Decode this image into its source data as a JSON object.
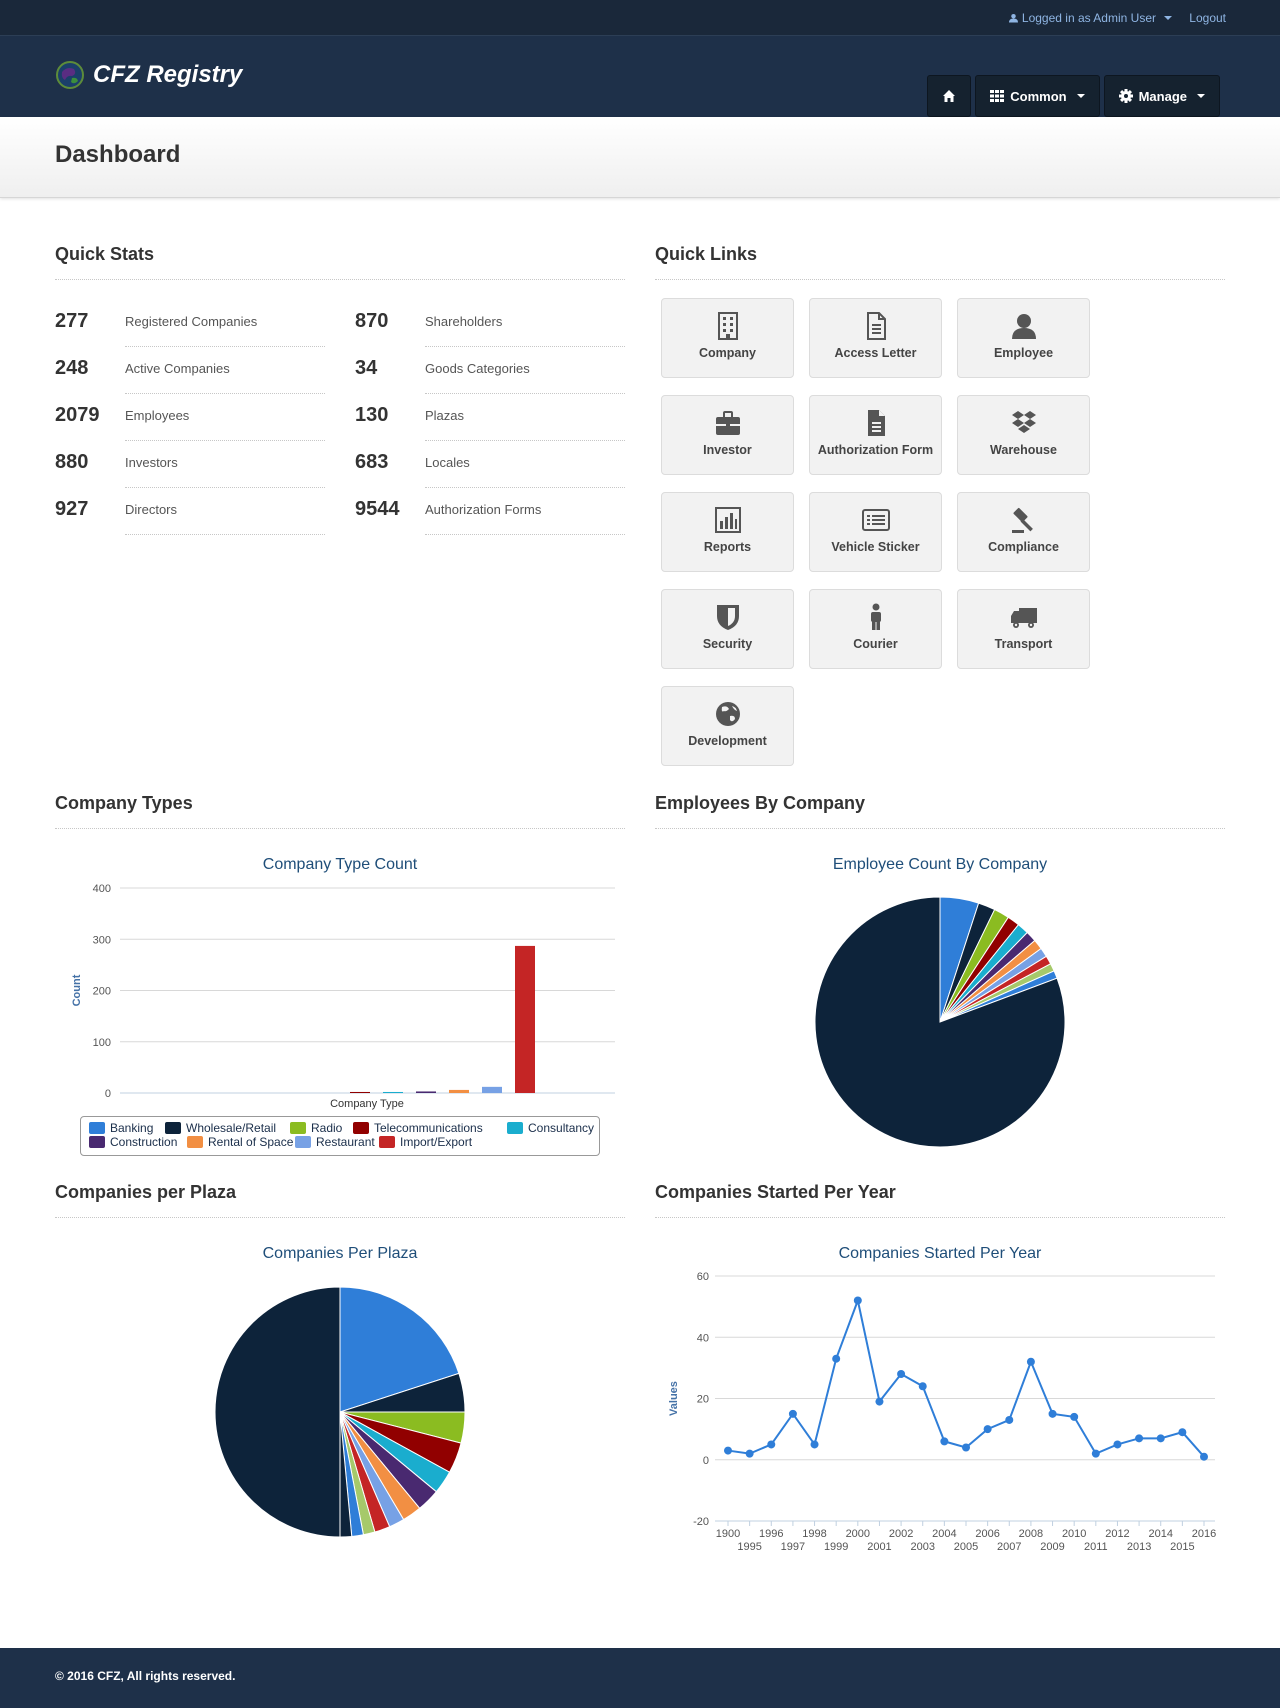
{
  "topbar": {
    "user": "Logged in as Admin User",
    "logout": "Logout"
  },
  "brand": {
    "name": "CFZ Registry"
  },
  "nav": {
    "home_icon": "home-icon",
    "common": "Common",
    "manage": "Manage"
  },
  "page": {
    "title": "Dashboard"
  },
  "quick_stats": {
    "title": "Quick Stats",
    "items": [
      {
        "value": "277",
        "label": "Registered Companies"
      },
      {
        "value": "248",
        "label": "Active Companies"
      },
      {
        "value": "2079",
        "label": "Employees"
      },
      {
        "value": "880",
        "label": "Investors"
      },
      {
        "value": "927",
        "label": "Directors"
      },
      {
        "value": "870",
        "label": "Shareholders"
      },
      {
        "value": "34",
        "label": "Goods Categories"
      },
      {
        "value": "130",
        "label": "Plazas"
      },
      {
        "value": "683",
        "label": "Locales"
      },
      {
        "value": "9544",
        "label": "Authorization Forms"
      }
    ]
  },
  "quick_links": {
    "title": "Quick Links",
    "items": [
      {
        "label": "Company",
        "icon": "building-icon"
      },
      {
        "label": "Access Letter",
        "icon": "document-icon"
      },
      {
        "label": "Employee",
        "icon": "user-icon"
      },
      {
        "label": "Investor",
        "icon": "briefcase-icon"
      },
      {
        "label": "Authorization Form",
        "icon": "file-icon"
      },
      {
        "label": "Warehouse",
        "icon": "dropbox-icon"
      },
      {
        "label": "Reports",
        "icon": "bar-chart-icon"
      },
      {
        "label": "Vehicle Sticker",
        "icon": "list-alt-icon"
      },
      {
        "label": "Compliance",
        "icon": "gavel-icon"
      },
      {
        "label": "Security",
        "icon": "shield-icon"
      },
      {
        "label": "Courier",
        "icon": "person-icon"
      },
      {
        "label": "Transport",
        "icon": "truck-icon"
      },
      {
        "label": "Development",
        "icon": "globe-icon"
      }
    ]
  },
  "sections": {
    "company_types": "Company Types",
    "employees_by_company": "Employees By Company",
    "companies_per_plaza": "Companies per Plaza",
    "companies_started": "Companies Started Per Year"
  },
  "colors": {
    "palette": [
      "#2f7ed8",
      "#0d233a",
      "#8bbc21",
      "#910000",
      "#1aadce",
      "#492970",
      "#f28f43",
      "#77a1e5",
      "#c42525",
      "#a6c96a"
    ]
  },
  "chart_data": [
    {
      "type": "bar",
      "title": "Company Type Count",
      "xlabel": "Company Type",
      "ylabel": "Count",
      "ylim": [
        0,
        400
      ],
      "yticks": [
        0,
        100,
        200,
        300,
        400
      ],
      "grid": true,
      "legend": "bottom",
      "series": [
        {
          "name": "Banking",
          "value": 0
        },
        {
          "name": "Wholesale/Retail",
          "value": 0
        },
        {
          "name": "Radio",
          "value": 0
        },
        {
          "name": "Telecommunications",
          "value": 2
        },
        {
          "name": "Consultancy",
          "value": 2
        },
        {
          "name": "Construction",
          "value": 3
        },
        {
          "name": "Rental of Space",
          "value": 6
        },
        {
          "name": "Restaurant",
          "value": 12
        },
        {
          "name": "Import/Export",
          "value": 287
        }
      ]
    },
    {
      "type": "pie",
      "title": "Employee Count By Company",
      "values": [
        5,
        2.2,
        2,
        1.6,
        1.5,
        1.4,
        1.3,
        1.2,
        1.1,
        1.0,
        1.0,
        80.7
      ]
    },
    {
      "type": "pie",
      "title": "Companies Per Plaza",
      "values": [
        20,
        5,
        4,
        4,
        3,
        3,
        2.5,
        2,
        2,
        1.5,
        1.5,
        1.5,
        50
      ]
    },
    {
      "type": "line",
      "title": "Companies Started Per Year",
      "ylabel": "Values",
      "ylim": [
        -20,
        60
      ],
      "yticks": [
        -20,
        0,
        20,
        40,
        60
      ],
      "grid": true,
      "x": [
        "1900",
        "1995",
        "1996",
        "1997",
        "1998",
        "1999",
        "2000",
        "2001",
        "2002",
        "2003",
        "2004",
        "2005",
        "2006",
        "2007",
        "2008",
        "2009",
        "2010",
        "2011",
        "2012",
        "2013",
        "2014",
        "2015",
        "2016"
      ],
      "y": [
        3,
        2,
        5,
        15,
        5,
        33,
        52,
        19,
        28,
        24,
        6,
        4,
        10,
        13,
        32,
        15,
        14,
        2,
        5,
        7,
        7,
        9,
        1
      ]
    }
  ],
  "footer": {
    "text": "© 2016 CFZ, All rights reserved."
  }
}
